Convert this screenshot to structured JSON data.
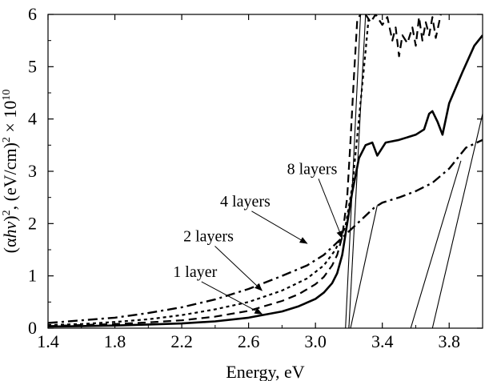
{
  "chart_data": {
    "type": "line",
    "title": "",
    "xlabel": "Energy, eV",
    "ylabel_parts": [
      "(α",
      "hν",
      ")",
      "2",
      ", (eV/cm)",
      "2",
      " × 10",
      "10"
    ],
    "xlim": [
      1.4,
      4.0
    ],
    "ylim": [
      0,
      6
    ],
    "x_ticks": [
      1.4,
      1.8,
      2.2,
      2.6,
      3.0,
      3.4,
      3.8
    ],
    "x_tick_labels": [
      "1.4",
      "1.8",
      "2.2",
      "2.6",
      "3.0",
      "3.4",
      "3.8"
    ],
    "y_ticks": [
      0,
      1,
      2,
      3,
      4,
      5,
      6
    ],
    "y_tick_labels": [
      "0",
      "1",
      "2",
      "3",
      "4",
      "5",
      "6"
    ],
    "grid": false,
    "series": [
      {
        "name": "1 layer",
        "style": "solid",
        "points": [
          [
            1.4,
            0.03
          ],
          [
            1.6,
            0.04
          ],
          [
            1.8,
            0.05
          ],
          [
            2.0,
            0.07
          ],
          [
            2.2,
            0.09
          ],
          [
            2.4,
            0.13
          ],
          [
            2.6,
            0.2
          ],
          [
            2.8,
            0.32
          ],
          [
            2.9,
            0.42
          ],
          [
            3.0,
            0.56
          ],
          [
            3.05,
            0.68
          ],
          [
            3.1,
            0.86
          ],
          [
            3.13,
            1.05
          ],
          [
            3.16,
            1.4
          ],
          [
            3.19,
            2.0
          ],
          [
            3.22,
            2.6
          ],
          [
            3.26,
            3.25
          ],
          [
            3.3,
            3.5
          ],
          [
            3.34,
            3.55
          ],
          [
            3.37,
            3.3
          ],
          [
            3.42,
            3.55
          ],
          [
            3.5,
            3.6
          ],
          [
            3.6,
            3.7
          ],
          [
            3.65,
            3.8
          ],
          [
            3.68,
            4.1
          ],
          [
            3.7,
            4.15
          ],
          [
            3.73,
            3.95
          ],
          [
            3.76,
            3.7
          ],
          [
            3.8,
            4.3
          ],
          [
            3.88,
            4.9
          ],
          [
            3.95,
            5.4
          ],
          [
            4.0,
            5.6
          ]
        ]
      },
      {
        "name": "2 layers",
        "style": "dashed",
        "points": [
          [
            1.4,
            0.04
          ],
          [
            1.6,
            0.06
          ],
          [
            1.8,
            0.08
          ],
          [
            2.0,
            0.11
          ],
          [
            2.2,
            0.15
          ],
          [
            2.4,
            0.22
          ],
          [
            2.6,
            0.33
          ],
          [
            2.8,
            0.52
          ],
          [
            2.9,
            0.65
          ],
          [
            3.0,
            0.84
          ],
          [
            3.05,
            0.98
          ],
          [
            3.1,
            1.2
          ],
          [
            3.13,
            1.4
          ],
          [
            3.16,
            1.75
          ],
          [
            3.19,
            2.5
          ],
          [
            3.21,
            3.6
          ],
          [
            3.23,
            4.8
          ],
          [
            3.25,
            5.9
          ],
          [
            3.27,
            6.0
          ]
        ]
      },
      {
        "name": "4 layers",
        "style": "dashdot",
        "points": [
          [
            1.4,
            0.1
          ],
          [
            1.6,
            0.15
          ],
          [
            1.8,
            0.2
          ],
          [
            2.0,
            0.29
          ],
          [
            2.2,
            0.4
          ],
          [
            2.4,
            0.55
          ],
          [
            2.6,
            0.75
          ],
          [
            2.8,
            1.0
          ],
          [
            2.95,
            1.2
          ],
          [
            3.05,
            1.4
          ],
          [
            3.15,
            1.7
          ],
          [
            3.25,
            2.0
          ],
          [
            3.35,
            2.3
          ],
          [
            3.4,
            2.4
          ],
          [
            3.5,
            2.5
          ],
          [
            3.6,
            2.62
          ],
          [
            3.7,
            2.78
          ],
          [
            3.8,
            3.05
          ],
          [
            3.9,
            3.45
          ],
          [
            4.0,
            3.6
          ]
        ]
      },
      {
        "name": "8 layers",
        "style": "dotted",
        "points": [
          [
            1.4,
            0.06
          ],
          [
            1.6,
            0.08
          ],
          [
            1.8,
            0.12
          ],
          [
            2.0,
            0.17
          ],
          [
            2.2,
            0.25
          ],
          [
            2.4,
            0.36
          ],
          [
            2.6,
            0.5
          ],
          [
            2.8,
            0.72
          ],
          [
            2.95,
            0.95
          ],
          [
            3.05,
            1.2
          ],
          [
            3.12,
            1.5
          ],
          [
            3.18,
            1.95
          ],
          [
            3.22,
            2.7
          ],
          [
            3.26,
            4.0
          ],
          [
            3.3,
            5.3
          ],
          [
            3.32,
            6.0
          ]
        ]
      },
      {
        "name": "",
        "style": "dashed",
        "points": [
          [
            3.3,
            6.0
          ],
          [
            3.33,
            5.85
          ],
          [
            3.36,
            6.0
          ],
          [
            3.4,
            5.8
          ],
          [
            3.43,
            5.95
          ],
          [
            3.46,
            5.5
          ],
          [
            3.48,
            5.75
          ],
          [
            3.5,
            5.2
          ],
          [
            3.52,
            5.6
          ],
          [
            3.55,
            5.45
          ],
          [
            3.58,
            5.75
          ],
          [
            3.6,
            5.4
          ],
          [
            3.62,
            5.95
          ],
          [
            3.64,
            5.5
          ],
          [
            3.66,
            5.85
          ],
          [
            3.68,
            5.6
          ],
          [
            3.7,
            5.95
          ],
          [
            3.72,
            5.55
          ],
          [
            3.75,
            6.0
          ]
        ]
      },
      {
        "name": "",
        "style": "thin",
        "points": [
          [
            3.18,
            0.0
          ],
          [
            3.27,
            6.0
          ]
        ]
      },
      {
        "name": "",
        "style": "thin",
        "points": [
          [
            3.2,
            0.0
          ],
          [
            3.3,
            6.0
          ]
        ]
      },
      {
        "name": "",
        "style": "thin",
        "points": [
          [
            3.21,
            0.0
          ],
          [
            3.37,
            2.35
          ]
        ]
      },
      {
        "name": "",
        "style": "thin",
        "points": [
          [
            3.57,
            0.0
          ],
          [
            3.87,
            3.2
          ]
        ]
      },
      {
        "name": "",
        "style": "thin",
        "points": [
          [
            3.7,
            0.0
          ],
          [
            4.0,
            4.1
          ]
        ]
      }
    ],
    "annotations": [
      {
        "text": "8 layers",
        "at": [
          2.98,
          2.95
        ],
        "arrow_to": [
          3.16,
          1.72
        ]
      },
      {
        "text": "4 layers",
        "at": [
          2.58,
          2.33
        ],
        "arrow_to": [
          2.95,
          1.62
        ]
      },
      {
        "text": "2 layers",
        "at": [
          2.36,
          1.66
        ],
        "arrow_to": [
          2.68,
          0.72
        ]
      },
      {
        "text": "1 layer",
        "at": [
          2.28,
          0.98
        ],
        "arrow_to": [
          2.68,
          0.27
        ]
      }
    ]
  }
}
